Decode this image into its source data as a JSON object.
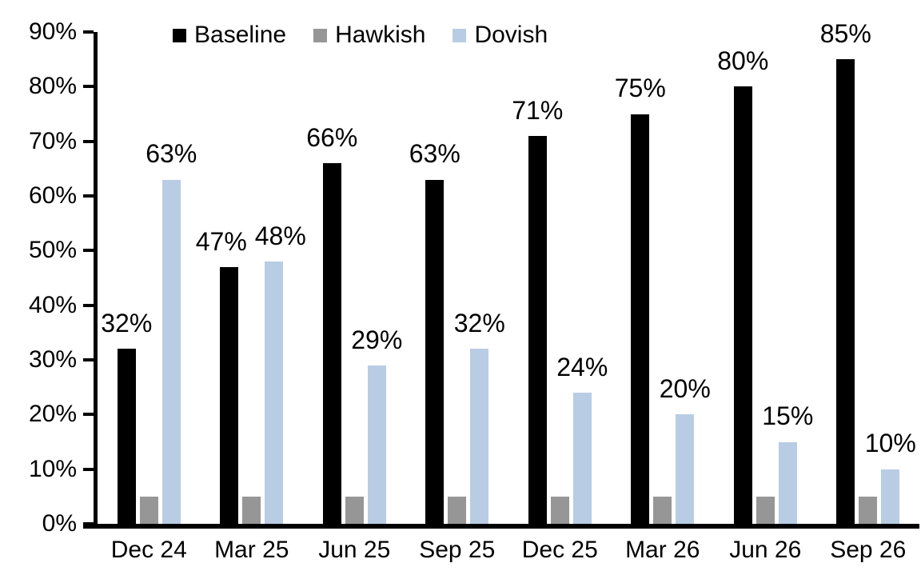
{
  "chart_data": {
    "type": "bar",
    "title": "",
    "xlabel": "",
    "ylabel": "",
    "categories": [
      "Dec 24",
      "Mar 25",
      "Jun 25",
      "Sep 25",
      "Dec 25",
      "Mar 26",
      "Jun 26",
      "Sep 26"
    ],
    "series": [
      {
        "name": "Baseline",
        "color": "#000000",
        "values": [
          32,
          47,
          66,
          63,
          71,
          75,
          80,
          85
        ],
        "labels": [
          "32%",
          "47%",
          "66%",
          "63%",
          "71%",
          "75%",
          "80%",
          "85%"
        ],
        "show_labels": true,
        "label_dx": [
          0,
          -10,
          0,
          0,
          0,
          0,
          0,
          0
        ]
      },
      {
        "name": "Hawkish",
        "color": "#969696",
        "values": [
          5,
          5,
          5,
          5,
          5,
          5,
          5,
          5
        ],
        "labels": [],
        "show_labels": false,
        "label_dx": [
          0,
          0,
          0,
          0,
          0,
          0,
          0,
          0
        ]
      },
      {
        "name": "Dovish",
        "color": "#B8CCE4",
        "values": [
          63,
          48,
          29,
          32,
          24,
          20,
          15,
          10
        ],
        "labels": [
          "63%",
          "48%",
          "29%",
          "32%",
          "24%",
          "20%",
          "15%",
          "10%"
        ],
        "show_labels": true,
        "label_dx": [
          0,
          8,
          0,
          0,
          0,
          0,
          0,
          0
        ]
      }
    ],
    "y_axis": {
      "min": 0,
      "max": 90,
      "tick_step": 10,
      "tick_labels": [
        "0%",
        "10%",
        "20%",
        "30%",
        "40%",
        "50%",
        "60%",
        "70%",
        "80%",
        "90%"
      ]
    },
    "legend": {
      "position": "top",
      "entries": [
        {
          "label": "Baseline",
          "color": "#000000"
        },
        {
          "label": "Hawkish",
          "color": "#969696"
        },
        {
          "label": "Dovish",
          "color": "#B8CCE4"
        }
      ]
    },
    "grid": false,
    "axis_color": "#000000",
    "background_color": "#ffffff"
  }
}
